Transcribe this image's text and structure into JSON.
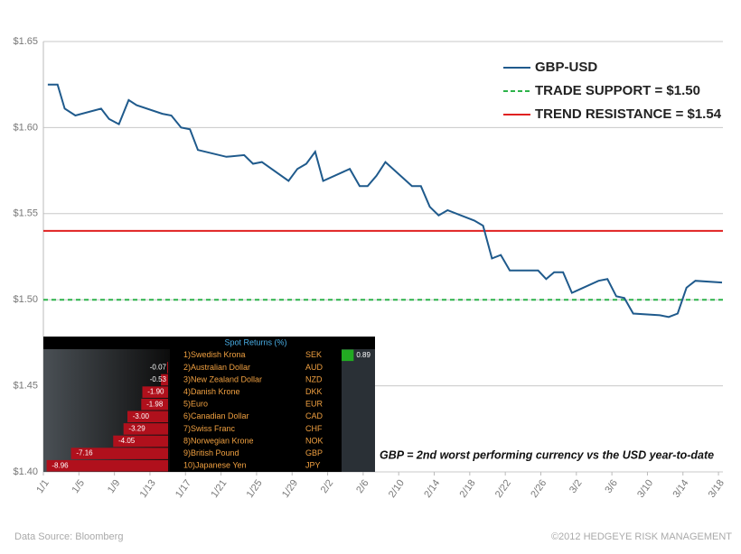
{
  "chart_data": [
    {
      "type": "line",
      "x": [
        0.5,
        1.6,
        2.4,
        3.6,
        6.5,
        7.4,
        8.5,
        9.6,
        10.5,
        13.4,
        14.4,
        15.5,
        16.5,
        17.4,
        20.6,
        22.6,
        23.6,
        24.6,
        27.6,
        28.6,
        29.6,
        30.6,
        31.5,
        34.5,
        35.6,
        36.5,
        37.5,
        38.5,
        41.5,
        42.5,
        43.5,
        44.5,
        45.5,
        48.5,
        49.5,
        50.5,
        51.5,
        52.5,
        55.7,
        56.6,
        57.5,
        58.5,
        59.5,
        62.5,
        63.5,
        64.5,
        65.4,
        66.4,
        69.4,
        70.4,
        71.4,
        72.4,
        73.4,
        76.4
      ],
      "series": [
        {
          "name": "GBP-USD",
          "color": "#1f5a8c",
          "values": [
            1.625,
            1.625,
            1.611,
            1.607,
            1.611,
            1.605,
            1.602,
            1.616,
            1.613,
            1.608,
            1.607,
            1.6,
            1.599,
            1.587,
            1.583,
            1.584,
            1.579,
            1.58,
            1.569,
            1.576,
            1.579,
            1.586,
            1.569,
            1.576,
            1.566,
            1.566,
            1.572,
            1.58,
            1.566,
            1.566,
            1.554,
            1.549,
            1.552,
            1.546,
            1.543,
            1.524,
            1.526,
            1.517,
            1.517,
            1.512,
            1.516,
            1.516,
            1.504,
            1.511,
            1.512,
            1.502,
            1.501,
            1.492,
            1.491,
            1.49,
            1.492,
            1.507,
            1.511,
            1.51
          ]
        }
      ],
      "hlines": [
        {
          "name": "TRADE SUPPORT = $1.50",
          "value": 1.5,
          "color": "#2db34a",
          "dashed": true
        },
        {
          "name": "TREND RESISTANCE = $1.54",
          "value": 1.54,
          "color": "#e02020",
          "dashed": false
        }
      ],
      "xlim": [
        0,
        76.5
      ],
      "xticks": [
        {
          "value": 0,
          "label": "1/1"
        },
        {
          "value": 4,
          "label": "1/5"
        },
        {
          "value": 8,
          "label": "1/9"
        },
        {
          "value": 12,
          "label": "1/13"
        },
        {
          "value": 16,
          "label": "1/17"
        },
        {
          "value": 20,
          "label": "1/21"
        },
        {
          "value": 24,
          "label": "1/25"
        },
        {
          "value": 28,
          "label": "1/29"
        },
        {
          "value": 32,
          "label": "2/2"
        },
        {
          "value": 36,
          "label": "2/6"
        },
        {
          "value": 40,
          "label": "2/10"
        },
        {
          "value": 44,
          "label": "2/14"
        },
        {
          "value": 48,
          "label": "2/18"
        },
        {
          "value": 52,
          "label": "2/22"
        },
        {
          "value": 56,
          "label": "2/26"
        },
        {
          "value": 60,
          "label": "3/2"
        },
        {
          "value": 64,
          "label": "3/6"
        },
        {
          "value": 68,
          "label": "3/10"
        },
        {
          "value": 72,
          "label": "3/14"
        },
        {
          "value": 76,
          "label": "3/18"
        }
      ],
      "ylim": [
        1.4,
        1.65
      ],
      "yticks": [
        {
          "value": 1.4,
          "label": "$1.40"
        },
        {
          "value": 1.45,
          "label": "$1.45"
        },
        {
          "value": 1.5,
          "label": "$1.50"
        },
        {
          "value": 1.55,
          "label": "$1.55"
        },
        {
          "value": 1.6,
          "label": "$1.60"
        },
        {
          "value": 1.65,
          "label": "$1.65"
        }
      ],
      "grid": true,
      "legend": "top-right",
      "annotation": "GBP = 2nd worst performing currency vs the USD year-to-date",
      "source": "Data Source: Bloomberg",
      "copyright": "©2012 HEDGEYE RISK MANAGEMENT"
    },
    {
      "type": "hbar",
      "title": "Spot Returns (%)",
      "categories": [
        "1)Swedish Krona",
        "2)Australian Dollar",
        "3)New Zealand Dollar",
        "4)Danish Krone",
        "5)Euro",
        "6)Canadian Dollar",
        "7)Swiss Franc",
        "8)Norwegian Krone",
        "9)British Pound",
        "10)Japanese Yen"
      ],
      "codes": [
        "SEK",
        "AUD",
        "NZD",
        "DKK",
        "EUR",
        "CAD",
        "CHF",
        "NOK",
        "GBP",
        "JPY"
      ],
      "values": [
        0.89,
        -0.07,
        -0.53,
        -1.9,
        -1.98,
        -3.0,
        -3.29,
        -4.05,
        -7.16,
        -8.96
      ],
      "value_labels": [
        "0.89",
        "-0.07",
        "-0.53",
        "-1.90",
        "-1.98",
        "-3.00",
        "-3.29",
        "-4.05",
        "-7.16",
        "-8.96"
      ],
      "colors": {
        "positive": "#22aa22",
        "negative": "#b0101c"
      }
    }
  ]
}
